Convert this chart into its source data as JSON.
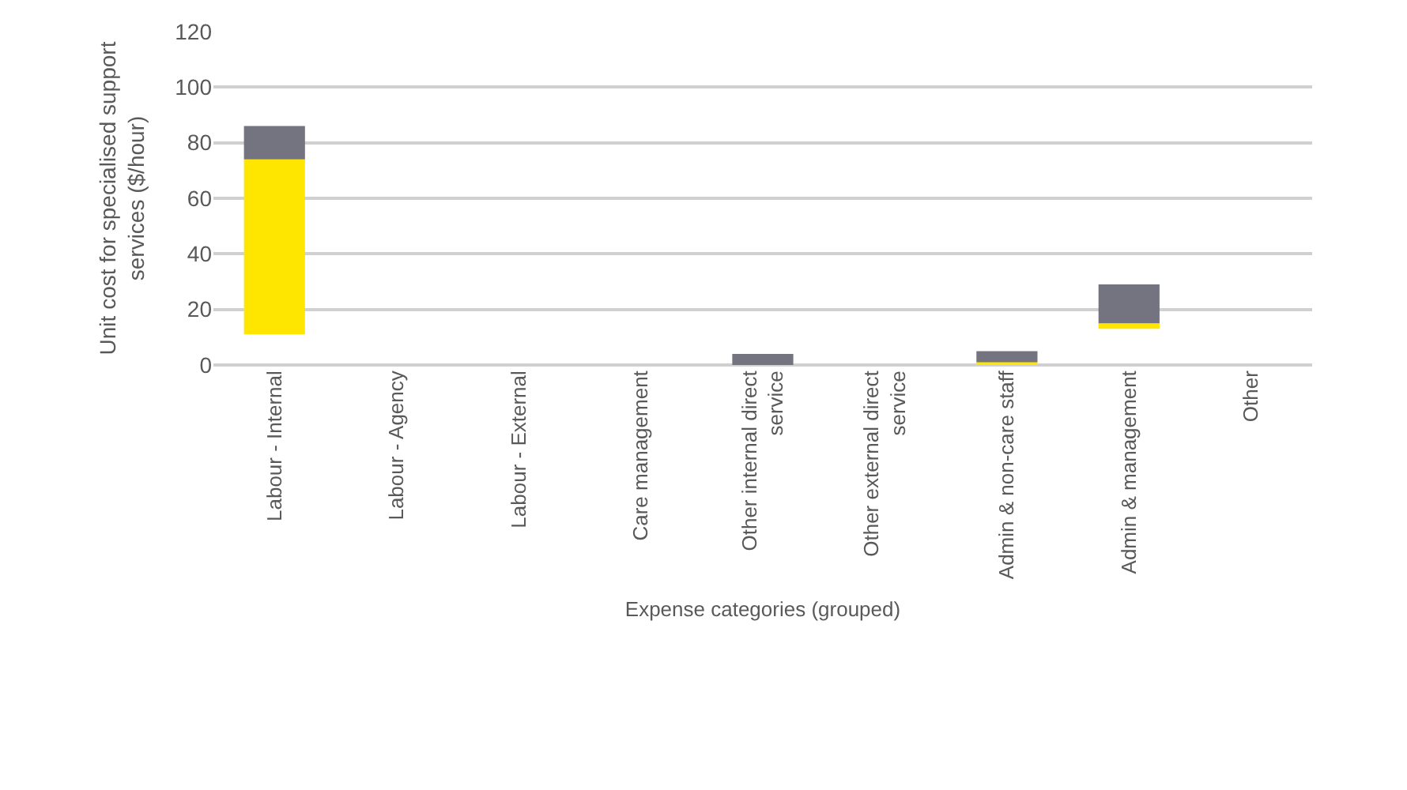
{
  "chart_data": {
    "type": "bar",
    "xlabel": "Expense categories (grouped)",
    "ylabel": "Unit cost for specialised support services ($/hour)",
    "categories": [
      "Labour - Internal",
      "Labour - Agency",
      "Labour - External",
      "Care management",
      "Other internal direct service",
      "Other external direct service",
      "Admin & non-care staff",
      "Admin & management",
      "Other"
    ],
    "series": [
      {
        "color": "#ffe600",
        "values": [
          63,
          null,
          null,
          null,
          null,
          null,
          1,
          2,
          null
        ],
        "base": [
          11,
          null,
          null,
          null,
          null,
          null,
          0,
          13,
          null
        ]
      },
      {
        "color": "#747480",
        "values": [
          12,
          null,
          null,
          null,
          4,
          null,
          4,
          14,
          null
        ],
        "base": [
          74,
          null,
          null,
          null,
          0,
          null,
          1,
          15,
          null
        ]
      }
    ],
    "ylim": [
      0,
      120
    ],
    "yticks": [
      0,
      20,
      40,
      60,
      80,
      100,
      120
    ],
    "grid": "y"
  }
}
